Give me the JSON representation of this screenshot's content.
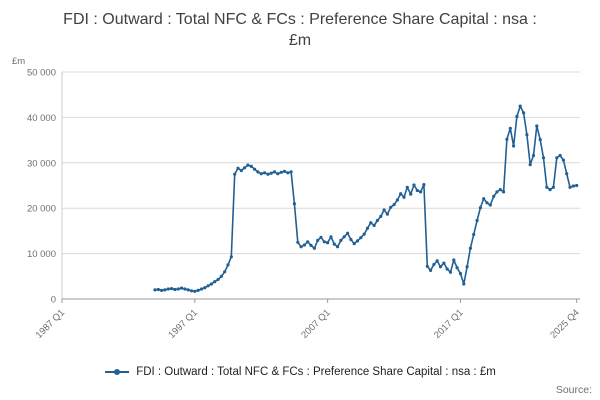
{
  "page": {
    "background": "#ffffff"
  },
  "chart_data": {
    "type": "line",
    "title": "FDI : Outward : Total NFC & FCs : Preference Share Capital : nsa : £m",
    "unit_label": "£m",
    "line_color": "#206095",
    "grid": "horizontal",
    "grid_color": "#d9d9d9",
    "axis_color": "#999999",
    "tick_text_color": "#707070",
    "ylim": [
      0,
      50000
    ],
    "yticks": [
      {
        "value": 0,
        "label": "0"
      },
      {
        "value": 10000,
        "label": "10 000"
      },
      {
        "value": 20000,
        "label": "20 000"
      },
      {
        "value": 30000,
        "label": "30 000"
      },
      {
        "value": 40000,
        "label": "40 000"
      },
      {
        "value": 50000,
        "label": "50 000"
      }
    ],
    "x_range": [
      1987.0,
      2026.0
    ],
    "xticks": [
      {
        "label": "1987 Q1",
        "t": 1987.0
      },
      {
        "label": "1997 Q1",
        "t": 1997.0
      },
      {
        "label": "2007 Q1",
        "t": 2007.0
      },
      {
        "label": "2017 Q1",
        "t": 2017.0
      },
      {
        "label": "2025 Q4",
        "t": 2025.75
      }
    ],
    "series": [
      {
        "name": "FDI : Outward : Total NFC & FCs : Preference Share Capital : nsa : £m",
        "start_year": 1994,
        "start_quarter": 1,
        "frequency": "quarterly",
        "values": [
          2000,
          2100,
          1900,
          2000,
          2200,
          2300,
          2100,
          2200,
          2400,
          2200,
          2000,
          1800,
          1700,
          1900,
          2200,
          2500,
          2900,
          3300,
          3800,
          4300,
          5000,
          6000,
          7500,
          9300,
          27500,
          28800,
          28300,
          28900,
          29500,
          29200,
          28600,
          28000,
          27600,
          27800,
          27500,
          27700,
          28000,
          27600,
          27900,
          28100,
          27800,
          28000,
          21000,
          12500,
          11500,
          11900,
          12600,
          11800,
          11200,
          12900,
          13600,
          12600,
          12400,
          13700,
          12100,
          11500,
          12900,
          13700,
          14500,
          13100,
          12200,
          12800,
          13500,
          14300,
          15600,
          16800,
          16200,
          17300,
          18200,
          19600,
          18700,
          20200,
          20800,
          21800,
          23200,
          22400,
          24600,
          23100,
          25100,
          23900,
          23600,
          25200,
          7200,
          6300,
          7600,
          8400,
          7100,
          7900,
          6600,
          5900,
          8600,
          6900,
          5600,
          3300,
          7100,
          11200,
          14200,
          17300,
          20100,
          22100,
          21200,
          20700,
          22600,
          23600,
          24100,
          23600,
          35200,
          37600,
          33700,
          40200,
          42500,
          41000,
          36200,
          29600,
          31600,
          38100,
          35100,
          31100,
          24600,
          24100,
          24600,
          31100,
          31600,
          30600,
          27600,
          24600,
          24900,
          25000
        ]
      }
    ],
    "legend": {
      "label": "FDI : Outward : Total NFC & FCs : Preference Share Capital : nsa : £m",
      "position": "bottom"
    }
  },
  "footer": {
    "source_label": "Source:"
  }
}
